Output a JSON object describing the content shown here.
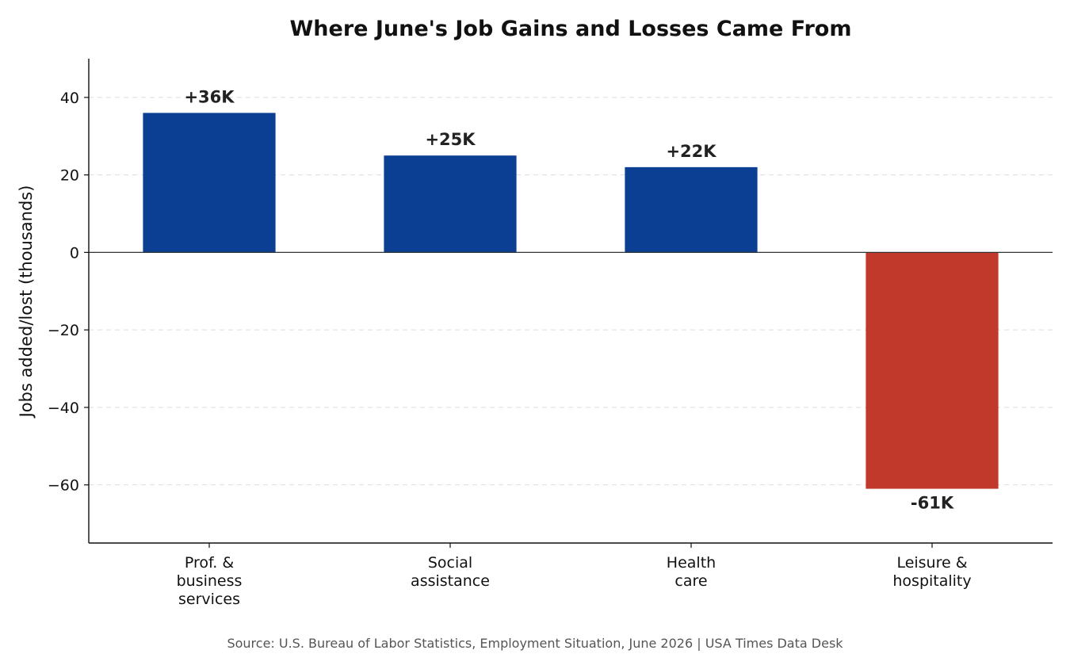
{
  "chart_data": {
    "type": "bar",
    "title": "Where June's Job Gains and Losses Came From",
    "ylabel": "Jobs added/lost (thousands)",
    "xlabel": "",
    "ylim": [
      -75,
      50
    ],
    "yticks": [
      40,
      20,
      0,
      -20,
      -40,
      -60
    ],
    "ytick_labels": [
      "40",
      "20",
      "0",
      "−20",
      "−40",
      "−60"
    ],
    "grid": "horizontal dashed",
    "categories": [
      [
        "Prof. &",
        "business",
        "services"
      ],
      [
        "Social",
        "assistance"
      ],
      [
        "Health",
        "care"
      ],
      [
        "Leisure &",
        "hospitality"
      ]
    ],
    "values": [
      36,
      25,
      22,
      -61
    ],
    "data_labels": [
      "+36K",
      "+25K",
      "+22K",
      "-61K"
    ],
    "colors": {
      "positive": "#0b3f93",
      "negative": "#c0392b",
      "grid": "#dddddd",
      "zero_line": "#333333",
      "axis": "#111111"
    },
    "source": "Source: U.S. Bureau of Labor Statistics, Employment Situation, June 2026  |  USA Times Data Desk"
  }
}
